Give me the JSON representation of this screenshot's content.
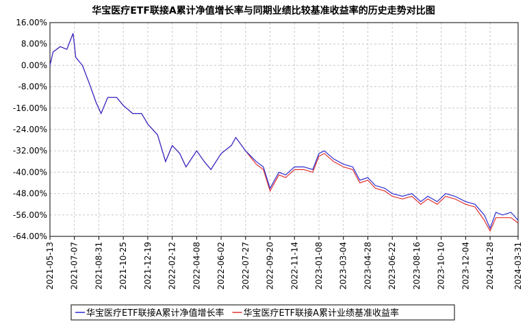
{
  "chart_data": {
    "type": "line",
    "title": "华宝医疗ETF联接A累计净值增长率与同期业绩比较基准收益率的历史走势对比图",
    "x": [
      "2021-05-13",
      "2021-05-20",
      "2021-06-05",
      "2021-06-20",
      "2021-07-04",
      "2021-07-10",
      "2021-07-25",
      "2021-08-10",
      "2021-08-25",
      "2021-09-05",
      "2021-09-20",
      "2021-10-10",
      "2021-10-25",
      "2021-11-15",
      "2021-12-05",
      "2021-12-19",
      "2022-01-10",
      "2022-01-28",
      "2022-02-12",
      "2022-03-01",
      "2022-03-15",
      "2022-04-08",
      "2022-04-25",
      "2022-05-10",
      "2022-06-02",
      "2022-06-25",
      "2022-07-05",
      "2022-07-27",
      "2022-08-20",
      "2022-09-05",
      "2022-09-20",
      "2022-10-10",
      "2022-10-25",
      "2022-11-14",
      "2022-12-05",
      "2022-12-25",
      "2023-01-08",
      "2023-01-20",
      "2023-02-10",
      "2023-03-04",
      "2023-03-25",
      "2023-04-10",
      "2023-04-28",
      "2023-05-15",
      "2023-06-05",
      "2023-06-22",
      "2023-07-15",
      "2023-08-05",
      "2023-08-25",
      "2023-09-10",
      "2023-10-01",
      "2023-10-20",
      "2023-11-10",
      "2023-12-04",
      "2023-12-25",
      "2024-01-15",
      "2024-01-28",
      "2024-02-10",
      "2024-02-25",
      "2024-03-15",
      "2024-03-31"
    ],
    "series": [
      {
        "name": "华宝医疗ETF联接A累计净值增长率",
        "color": "#2a2ad0",
        "values": [
          0,
          5,
          7,
          6,
          12,
          3,
          0,
          -7,
          -14,
          -18,
          -12,
          -12,
          -15,
          -18,
          -18,
          -22,
          -26,
          -36,
          -30,
          -33,
          -38,
          -32,
          -36,
          -39,
          -33,
          -30,
          -27,
          -32,
          -36,
          -38,
          -46,
          -40,
          -41,
          -38,
          -38,
          -39,
          -33,
          -32,
          -35,
          -37,
          -38,
          -43,
          -42,
          -45,
          -46,
          -48,
          -49,
          -48,
          -51,
          -49,
          -51,
          -48,
          -49,
          -51,
          -52,
          -56,
          -61,
          -55,
          -56,
          -55,
          -58
        ]
      },
      {
        "name": "华宝医疗ETF联接A累计业绩基准收益率",
        "color": "#e0302e",
        "values": [
          0,
          5,
          7,
          6,
          12,
          3,
          0,
          -7,
          -14,
          -18,
          -12,
          -12,
          -15,
          -18,
          -18,
          -22,
          -26,
          -36,
          -30,
          -33,
          -38,
          -32,
          -36,
          -39,
          -33,
          -30,
          -27,
          -32,
          -37,
          -39,
          -47,
          -41,
          -42,
          -39,
          -39,
          -40,
          -34,
          -33,
          -36,
          -38,
          -39,
          -44,
          -43,
          -46,
          -47,
          -49,
          -50,
          -49,
          -52,
          -50,
          -52,
          -49,
          -50,
          -52,
          -53,
          -58,
          -62,
          -57,
          -57,
          -57,
          -59
        ]
      }
    ],
    "xlim": [
      "2021-05-13",
      "2024-03-31"
    ],
    "xticks": [
      "2021-05-13",
      "2021-07-07",
      "2021-08-31",
      "2021-10-25",
      "2021-12-19",
      "2022-02-12",
      "2022-04-08",
      "2022-06-02",
      "2022-07-27",
      "2022-09-20",
      "2022-11-14",
      "2023-01-08",
      "2023-03-04",
      "2023-04-28",
      "2023-06-22",
      "2023-08-16",
      "2023-10-10",
      "2023-12-04",
      "2024-01-28",
      "2024-03-31"
    ],
    "ylim": [
      -64,
      16
    ],
    "yticks": [
      {
        "value": 16,
        "label": "16.00%"
      },
      {
        "value": 8,
        "label": "8.00%"
      },
      {
        "value": 0,
        "label": "0.00%"
      },
      {
        "value": -8,
        "label": "-8.00%"
      },
      {
        "value": -16,
        "label": "-16.00%"
      },
      {
        "value": -24,
        "label": "-24.00%"
      },
      {
        "value": -32,
        "label": "-32.00%"
      },
      {
        "value": -40,
        "label": "-40.00%"
      },
      {
        "value": -48,
        "label": "-48.00%"
      },
      {
        "value": -56,
        "label": "-56.00%"
      },
      {
        "value": -64,
        "label": "-64.00%"
      }
    ],
    "grid": true
  }
}
